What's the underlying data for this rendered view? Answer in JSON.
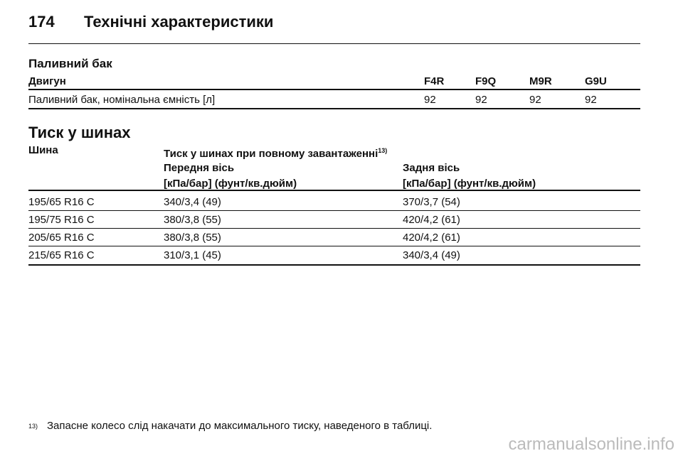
{
  "header": {
    "page_number": "174",
    "title": "Технічні характеристики"
  },
  "fuel_tank": {
    "title": "Паливний бак",
    "table": {
      "columns": [
        "Двигун",
        "F4R",
        "F9Q",
        "M9R",
        "G9U"
      ],
      "rows": [
        [
          "Паливний бак, номінальна ємність [л]",
          "92",
          "92",
          "92",
          "92"
        ]
      ]
    }
  },
  "tyre_pressure": {
    "title": "Тиск у шинах",
    "table": {
      "column_tyre": "Шина",
      "column_group": "Тиск у шинах при повному завантаженні",
      "footnote_ref": "13)",
      "sub_columns": [
        "Передня вісь",
        "Задня вісь"
      ],
      "units": [
        "[кПа/бар] (фунт/кв.дюйм)",
        "[кПа/бар] (фунт/кв.дюйм)"
      ],
      "rows": [
        [
          "195/65 R16 C",
          "340/3,4 (49)",
          "370/3,7 (54)"
        ],
        [
          "195/75 R16 C",
          "380/3,8 (55)",
          "420/4,2 (61)"
        ],
        [
          "205/65 R16 C",
          "380/3,8 (55)",
          "420/4,2 (61)"
        ],
        [
          "215/65 R16 C",
          "310/3,1 (45)",
          "340/3,4 (49)"
        ]
      ]
    }
  },
  "footnote": {
    "ref": "13)",
    "text": "Запасне колесо слід накачати до максимального тиску, наведеного в таблиці."
  },
  "watermark": "carmanualsonline.info"
}
